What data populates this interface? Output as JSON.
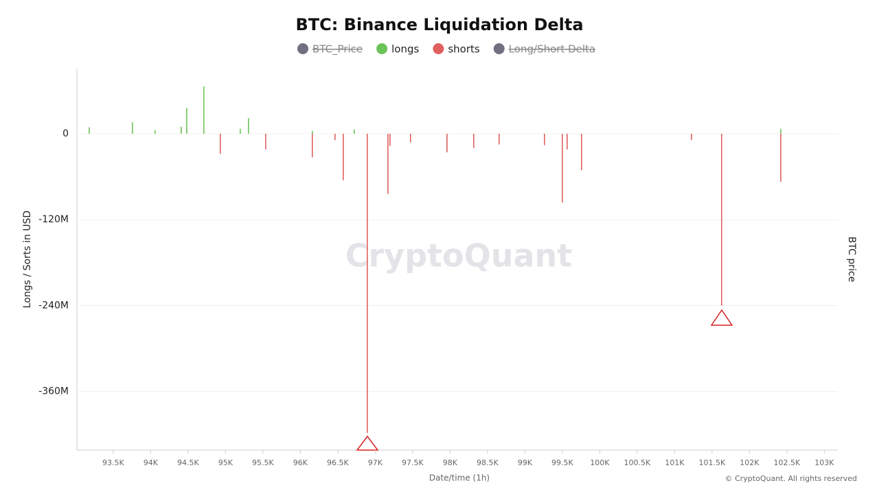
{
  "chart_data": {
    "type": "bar",
    "title": "BTC: Binance Liquidation Delta",
    "x_label": "Date/time (1h)",
    "y_label": "Longs / Sorts in USD",
    "y2_label": "BTC price",
    "watermark": "CryptoQuant",
    "credit": "© CryptoQuant. All rights reserved",
    "xlim": [
      93070,
      103180
    ],
    "ylim": [
      -442000000,
      91000000
    ],
    "grid": true,
    "xticks": [
      {
        "value": 93500,
        "label": "93.5K"
      },
      {
        "value": 94000,
        "label": "94K"
      },
      {
        "value": 94500,
        "label": "94.5K"
      },
      {
        "value": 95000,
        "label": "95K"
      },
      {
        "value": 95500,
        "label": "95.5K"
      },
      {
        "value": 96000,
        "label": "96K"
      },
      {
        "value": 96500,
        "label": "96.5K"
      },
      {
        "value": 97000,
        "label": "97K"
      },
      {
        "value": 97500,
        "label": "97.5K"
      },
      {
        "value": 98000,
        "label": "98K"
      },
      {
        "value": 98500,
        "label": "98.5K"
      },
      {
        "value": 99000,
        "label": "99K"
      },
      {
        "value": 99500,
        "label": "99.5K"
      },
      {
        "value": 100000,
        "label": "100K"
      },
      {
        "value": 100500,
        "label": "100.5K"
      },
      {
        "value": 101000,
        "label": "101K"
      },
      {
        "value": 101500,
        "label": "101.5K"
      },
      {
        "value": 102000,
        "label": "102K"
      },
      {
        "value": 102500,
        "label": "102.5K"
      },
      {
        "value": 103000,
        "label": "103K"
      }
    ],
    "yticks": [
      0,
      {
        "value": -120000000,
        "label": "-120M"
      },
      {
        "value": -240000000,
        "label": "-240M"
      },
      {
        "value": -360000000,
        "label": "-360M"
      }
    ],
    "series": [
      {
        "name": "BTC_Price",
        "color": "#707080",
        "visible": false
      },
      {
        "name": "longs",
        "color": "#6cc35a",
        "visible": true,
        "x": [
          93179,
          93757,
          94060,
          94408,
          94482,
          94711,
          95197,
          95307,
          96160,
          96720,
          102418
        ],
        "values": [
          9000000,
          16000000,
          5000000,
          10000000,
          36000000,
          66000000,
          7000000,
          22000000,
          4000000,
          6000000,
          7000000
        ]
      },
      {
        "name": "shorts",
        "color": "#e06060",
        "visible": true,
        "x": [
          94931,
          95537,
          96160,
          96463,
          96573,
          96894,
          97170,
          97197,
          97472,
          97959,
          98316,
          98656,
          99261,
          99500,
          99564,
          99757,
          101225,
          101628,
          102418
        ],
        "values": [
          -28000000,
          -22000000,
          -33000000,
          -9000000,
          -65000000,
          -418000000,
          -84000000,
          -17000000,
          -12000000,
          -26000000,
          -20000000,
          -15000000,
          -16000000,
          -96000000,
          -22000000,
          -51000000,
          -9000000,
          -240000000,
          -67000000
        ]
      },
      {
        "name": "Long/Short Delta",
        "color": "#707080",
        "visible": false
      }
    ]
  }
}
